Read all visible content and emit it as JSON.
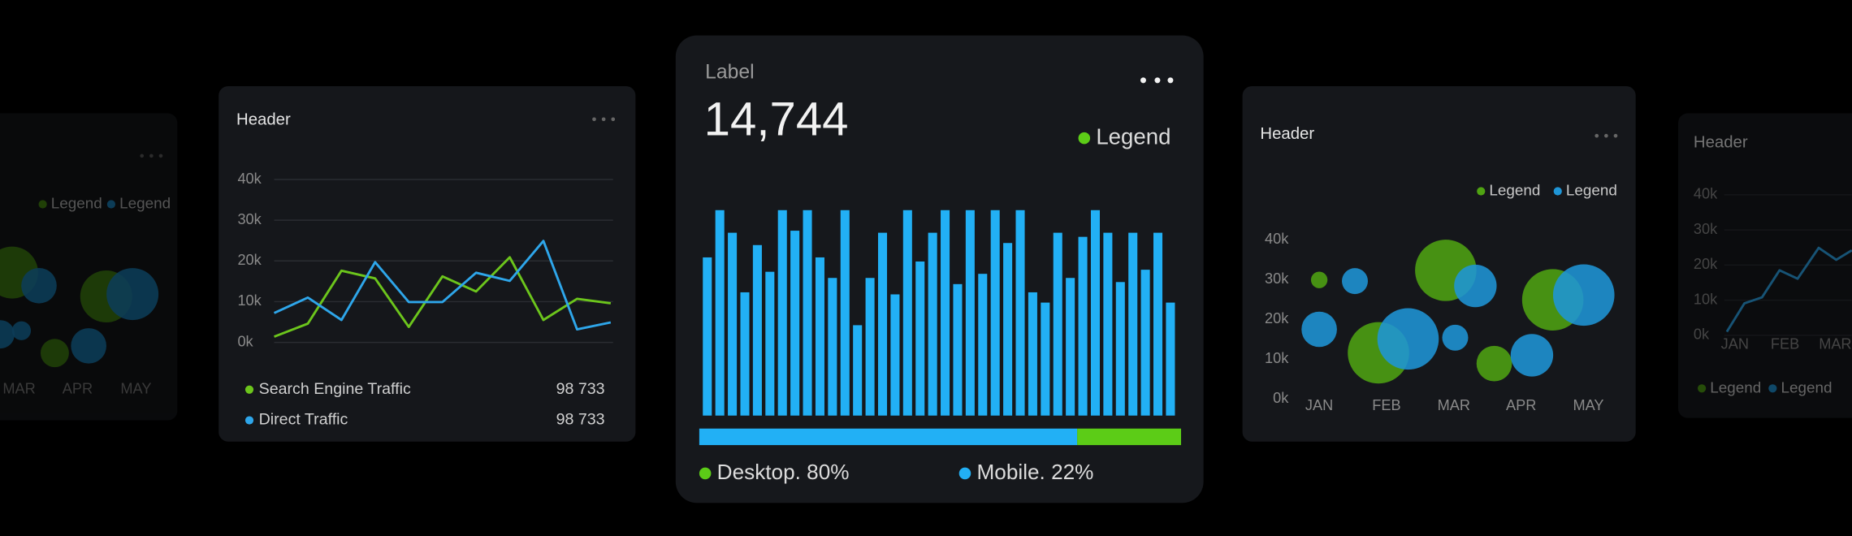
{
  "chart_data": [
    {
      "type": "bubble",
      "xlim": [
        -0.5,
        4.5
      ],
      "ylim": [
        0,
        40000
      ],
      "xticks": [
        {
          "value": 2,
          "label": "MAR"
        },
        {
          "value": 3,
          "label": "APR"
        },
        {
          "value": 4,
          "label": "MAY"
        }
      ],
      "series": [
        {
          "name": "Legend",
          "color": "#4c9a12",
          "x": [
            1.88,
            2.61,
            3.49
          ],
          "values": [
            27600,
            7400,
            21600
          ],
          "sizes": [
            22,
            12,
            22
          ]
        },
        {
          "name": "Legend",
          "color": "#1e8fd0",
          "x": [
            2.34,
            1.68,
            2.04,
            3.19,
            3.94
          ],
          "values": [
            24300,
            12100,
            13000,
            9200,
            22200
          ],
          "sizes": [
            15,
            12,
            8,
            15,
            22
          ]
        }
      ]
    },
    {
      "type": "line",
      "title": "Header",
      "ylim": [
        0,
        40000
      ],
      "yticks": [
        {
          "value": 0,
          "label": "0k"
        },
        {
          "value": 10000,
          "label": "10k"
        },
        {
          "value": 20000,
          "label": "20k"
        },
        {
          "value": 30000,
          "label": "30k"
        },
        {
          "value": 40000,
          "label": "40k"
        }
      ],
      "grid": true,
      "series": [
        {
          "name": "Search Engine Traffic",
          "color": "#6cc51c",
          "total": "98 733",
          "values": [
            1400,
            4600,
            17600,
            15700,
            3800,
            16200,
            12500,
            20900,
            5500,
            10700,
            9600
          ]
        },
        {
          "name": "Direct Traffic",
          "color": "#2ea6ea",
          "total": "98 733",
          "values": [
            7200,
            11000,
            5500,
            19700,
            9900,
            9900,
            17100,
            15100,
            24900,
            3200,
            4900
          ]
        }
      ]
    },
    {
      "type": "bar",
      "label": "Label",
      "kpi": "14,744",
      "legend": "Legend",
      "legend_color": "#5ccc17",
      "color": "#22b0f5",
      "values": [
        77,
        100,
        89,
        60,
        83,
        70,
        100,
        90,
        100,
        77,
        67,
        100,
        44,
        67,
        89,
        59,
        100,
        75,
        89,
        100,
        64,
        100,
        69,
        100,
        84,
        100,
        60,
        55,
        89,
        67,
        87,
        100,
        89,
        65,
        89,
        71,
        89,
        55
      ],
      "segments": [
        {
          "name": "Desktop. 80%",
          "value": 80,
          "bar_color": "#22b0f5",
          "dot_color": "#5ccc17"
        },
        {
          "name": "Mobile. 22%",
          "value": 22,
          "bar_color": "#5ccc17",
          "dot_color": "#22b0f5"
        }
      ]
    },
    {
      "type": "bubble",
      "title": "Header",
      "xlim": [
        -0.5,
        4.5
      ],
      "ylim": [
        0,
        40000
      ],
      "yticks": [
        {
          "value": 0,
          "label": "0k"
        },
        {
          "value": 10000,
          "label": "10k"
        },
        {
          "value": 20000,
          "label": "20k"
        },
        {
          "value": 30000,
          "label": "30k"
        },
        {
          "value": 40000,
          "label": "40k"
        }
      ],
      "xticks": [
        {
          "value": 0,
          "label": "JAN"
        },
        {
          "value": 1,
          "label": "FEB"
        },
        {
          "value": 2,
          "label": "MAR"
        },
        {
          "value": 3,
          "label": "APR"
        },
        {
          "value": 4,
          "label": "MAY"
        }
      ],
      "series": [
        {
          "name": "Legend",
          "color": "#4fa312",
          "x": [
            0,
            0.88,
            1.88,
            2.6,
            3.47
          ],
          "values": [
            29900,
            11600,
            32300,
            8900,
            24900
          ],
          "sizes": [
            7,
            26,
            26,
            15,
            26
          ]
        },
        {
          "name": "Legend",
          "color": "#1f95d6",
          "x": [
            0.53,
            0,
            1.32,
            2.02,
            2.32,
            3.16,
            3.93
          ],
          "values": [
            29600,
            17500,
            15100,
            15400,
            28400,
            11000,
            26100
          ],
          "sizes": [
            11,
            15,
            26,
            11,
            18,
            18,
            26
          ]
        }
      ]
    },
    {
      "type": "line",
      "title": "Header",
      "xlim": [
        -0.2,
        2.4
      ],
      "ylim": [
        0,
        40000
      ],
      "yticks": [
        {
          "value": 0,
          "label": "0k"
        },
        {
          "value": 10000,
          "label": "10k"
        },
        {
          "value": 20000,
          "label": "20k"
        },
        {
          "value": 30000,
          "label": "30k"
        },
        {
          "value": 40000,
          "label": "40k"
        }
      ],
      "xticks": [
        {
          "value": 0,
          "label": "JAN"
        },
        {
          "value": 1,
          "label": "FEB"
        },
        {
          "value": 2,
          "label": "MAR"
        }
      ],
      "grid": true,
      "legend": [
        {
          "name": "Legend",
          "color": "#4c9a12"
        },
        {
          "name": "Legend",
          "color": "#1e8fd0"
        }
      ],
      "series": [
        {
          "color": "#2ea6ea",
          "x": [
            -0.16,
            0.19,
            0.54,
            0.89,
            1.25,
            1.67,
            2.02,
            2.33
          ],
          "values": [
            1000,
            9100,
            10800,
            18500,
            16100,
            24900,
            21500,
            24200
          ]
        }
      ]
    }
  ]
}
